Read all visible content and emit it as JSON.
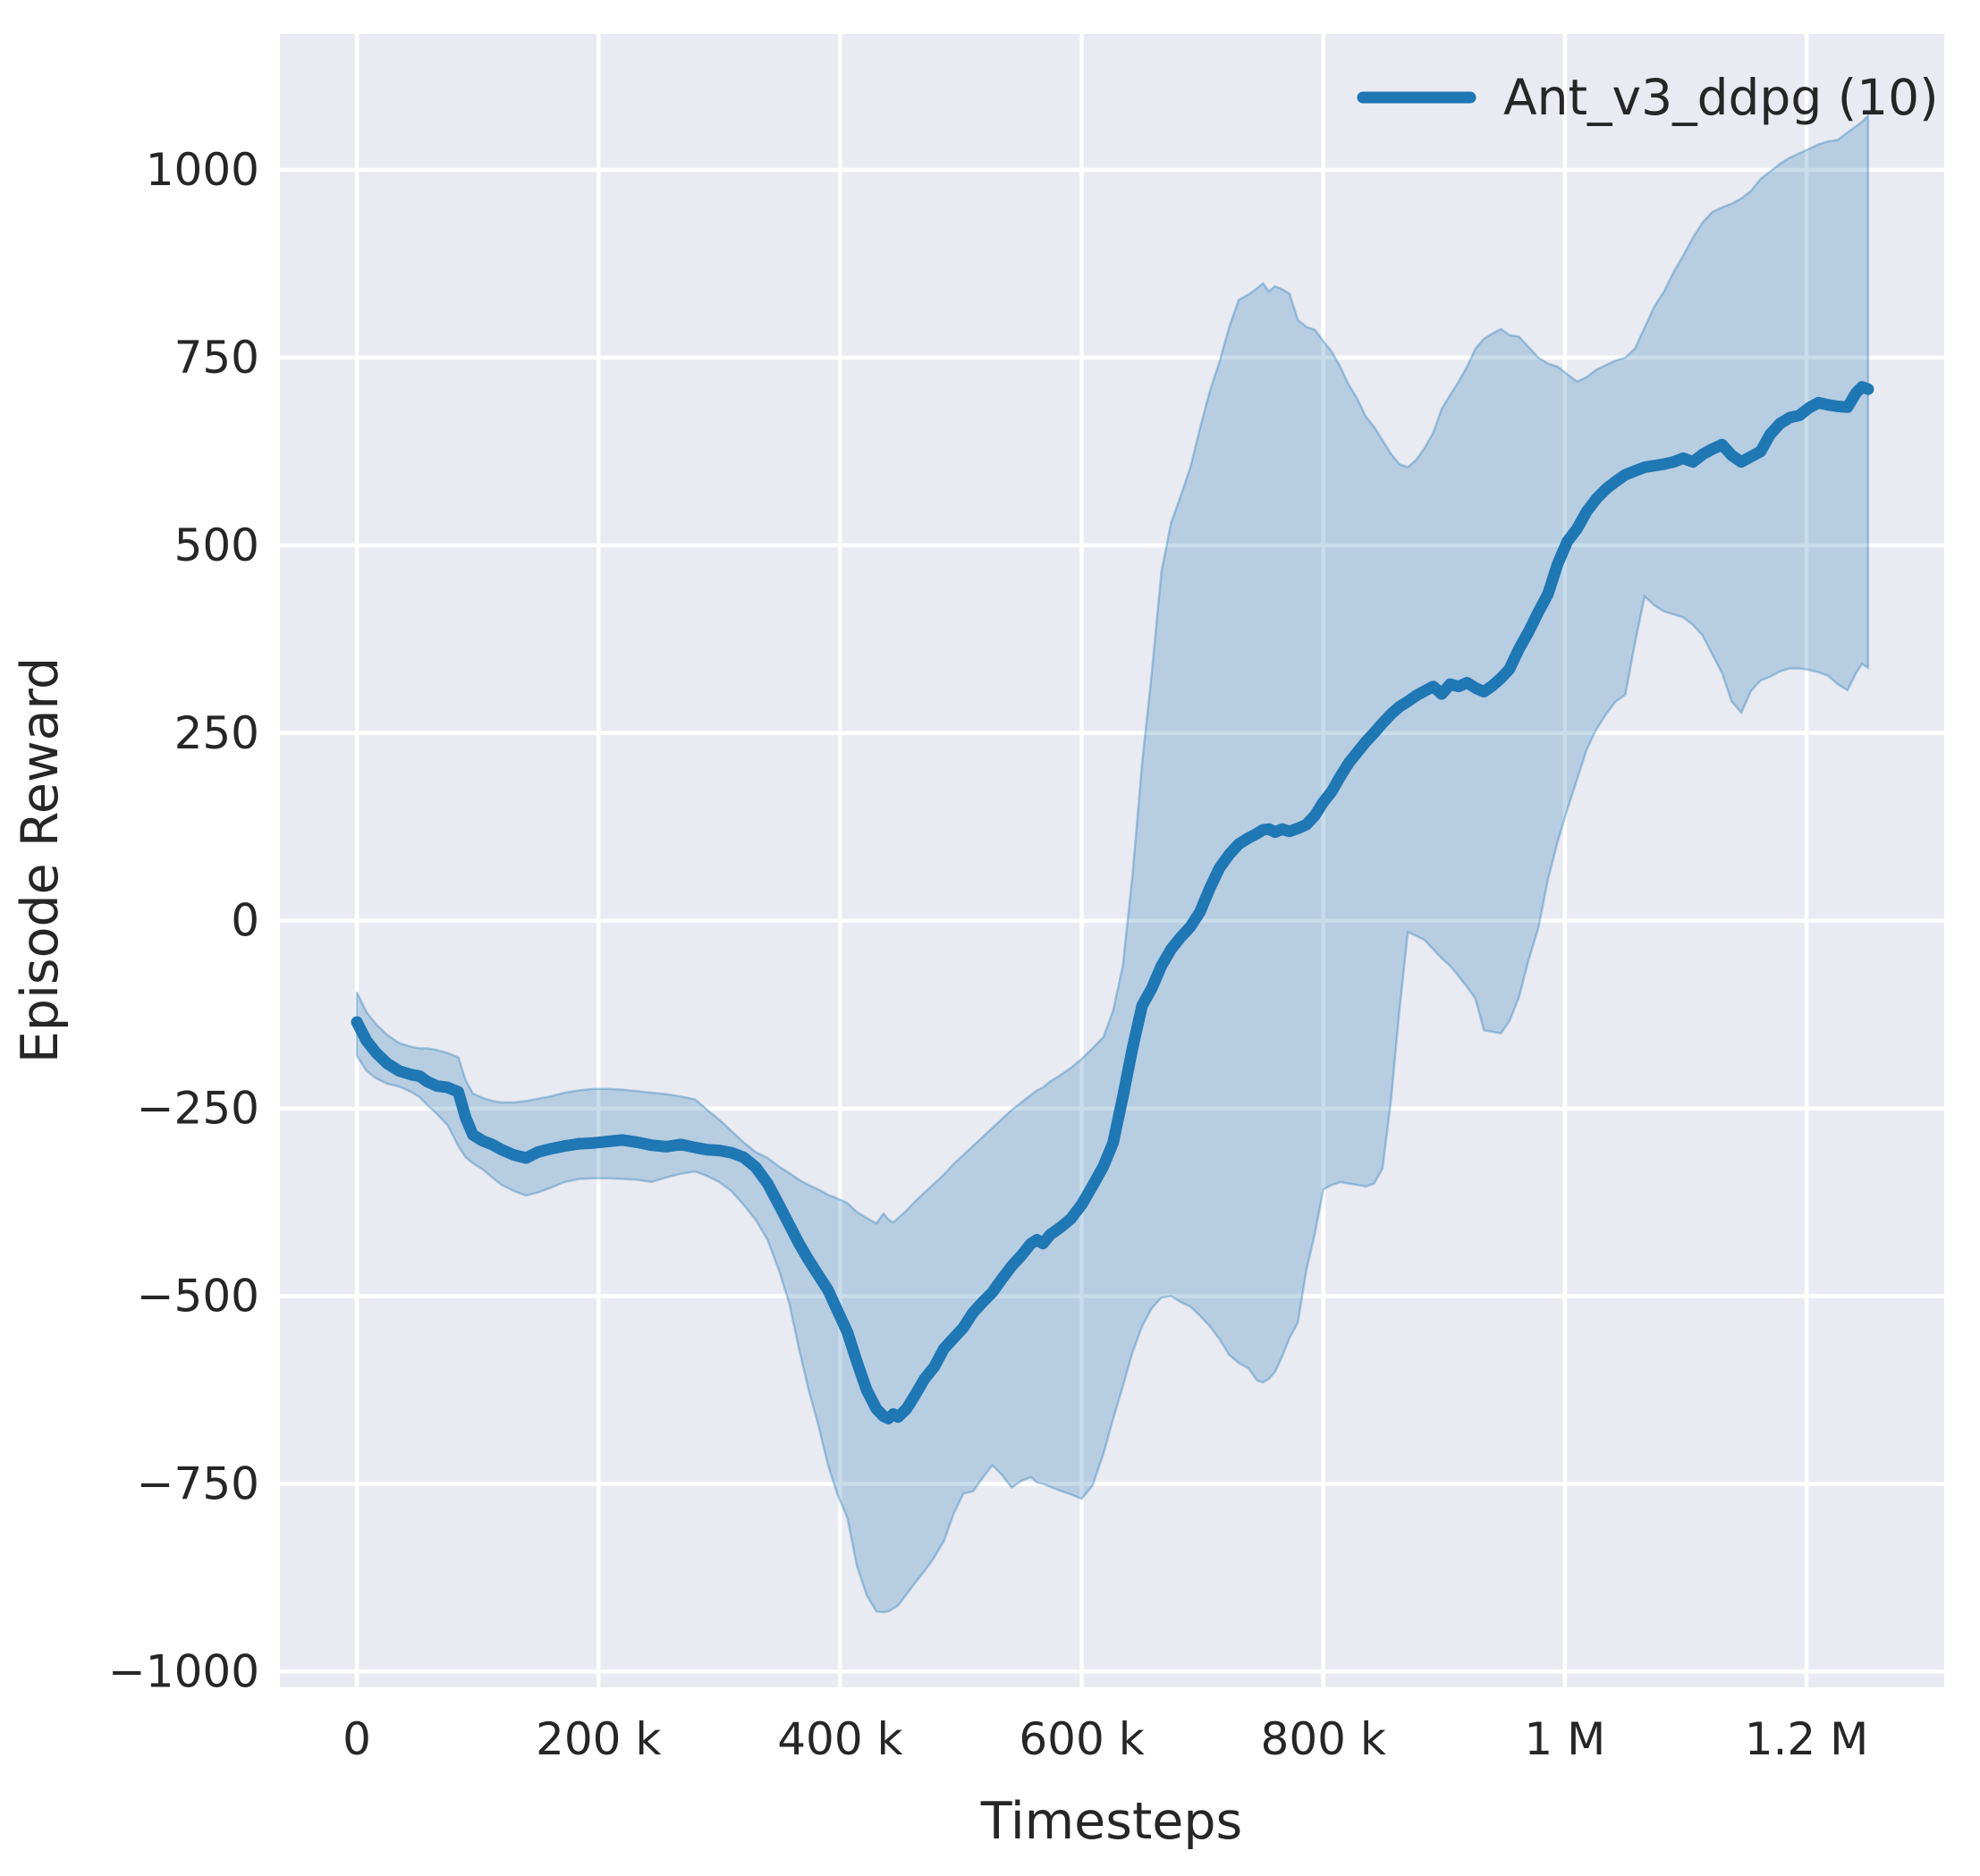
{
  "figure": {
    "background": "#ffffff"
  },
  "legend": {
    "label": "Ant_v3_ddpg (10)"
  },
  "style": {
    "plot_bg": "#eaeaf2",
    "grid_color": "#ffffff",
    "line_color": "#1f77b4",
    "band_color": "#1f77b4",
    "band_alpha": 0.25,
    "text_color": "#262626"
  },
  "chart_data": {
    "type": "line",
    "title": "",
    "xlabel": "Timesteps",
    "ylabel": "Episode Reward",
    "legend_entries": [
      "Ant_v3_ddpg (10)"
    ],
    "legend_position": "upper right",
    "grid": true,
    "x_unit": "timesteps, stored in thousands",
    "xlim_k": [
      -63.7,
      1314
    ],
    "ylim": [
      -1021,
      1181
    ],
    "x_ticks": [
      {
        "value_k": 0,
        "label": "0"
      },
      {
        "value_k": 200,
        "label": "200 k"
      },
      {
        "value_k": 400,
        "label": "400 k"
      },
      {
        "value_k": 600,
        "label": "600 k"
      },
      {
        "value_k": 800,
        "label": "800 k"
      },
      {
        "value_k": 1000,
        "label": "1 M"
      },
      {
        "value_k": 1200,
        "label": "1.2 M"
      }
    ],
    "y_ticks": [
      {
        "value": 1000,
        "label": "1000"
      },
      {
        "value": 750,
        "label": "750"
      },
      {
        "value": 500,
        "label": "500"
      },
      {
        "value": 250,
        "label": "250"
      },
      {
        "value": 0,
        "label": "0"
      },
      {
        "value": -250,
        "label": "−250"
      },
      {
        "value": -500,
        "label": "−500"
      },
      {
        "value": -750,
        "label": "−750"
      },
      {
        "value": -1000,
        "label": "−1000"
      }
    ],
    "series": [
      {
        "name": "Ant_v3_ddpg (10)",
        "color": "#1f77b4",
        "band": "mean ± std over 10 seeds",
        "points_k_mean_lo_hi": [
          [
            0,
            -135,
            -180,
            -95
          ],
          [
            8,
            -160,
            -200,
            -122
          ],
          [
            16,
            -176,
            -210,
            -138
          ],
          [
            25,
            -190,
            -217,
            -152
          ],
          [
            35,
            -200,
            -221,
            -163
          ],
          [
            45,
            -205,
            -228,
            -168
          ],
          [
            52,
            -207,
            -235,
            -170
          ],
          [
            58,
            -214,
            -245,
            -170
          ],
          [
            66,
            -220,
            -257,
            -172
          ],
          [
            75,
            -222,
            -272,
            -176
          ],
          [
            84,
            -228,
            -300,
            -182
          ],
          [
            90,
            -262,
            -315,
            -212
          ],
          [
            96,
            -285,
            -323,
            -230
          ],
          [
            104,
            -293,
            -331,
            -236
          ],
          [
            112,
            -298,
            -342,
            -240
          ],
          [
            120,
            -305,
            -352,
            -242
          ],
          [
            130,
            -312,
            -360,
            -242
          ],
          [
            140,
            -316,
            -366,
            -240
          ],
          [
            150,
            -308,
            -362,
            -237
          ],
          [
            160,
            -304,
            -356,
            -234
          ],
          [
            172,
            -300,
            -348,
            -229
          ],
          [
            184,
            -297,
            -344,
            -226
          ],
          [
            196,
            -296,
            -343,
            -224
          ],
          [
            208,
            -294,
            -343,
            -224
          ],
          [
            220,
            -292,
            -344,
            -225
          ],
          [
            232,
            -295,
            -345,
            -227
          ],
          [
            244,
            -299,
            -348,
            -229
          ],
          [
            256,
            -301,
            -342,
            -231
          ],
          [
            268,
            -298,
            -337,
            -234
          ],
          [
            280,
            -302,
            -334,
            -238
          ],
          [
            290,
            -305,
            -340,
            -252
          ],
          [
            300,
            -306,
            -348,
            -265
          ],
          [
            310,
            -309,
            -360,
            -280
          ],
          [
            320,
            -315,
            -378,
            -295
          ],
          [
            330,
            -328,
            -398,
            -308
          ],
          [
            340,
            -350,
            -425,
            -316
          ],
          [
            350,
            -380,
            -468,
            -328
          ],
          [
            358,
            -405,
            -510,
            -336
          ],
          [
            366,
            -430,
            -570,
            -345
          ],
          [
            374,
            -452,
            -625,
            -352
          ],
          [
            382,
            -472,
            -672,
            -358
          ],
          [
            390,
            -492,
            -725,
            -365
          ],
          [
            398,
            -520,
            -765,
            -370
          ],
          [
            406,
            -548,
            -795,
            -376
          ],
          [
            414,
            -588,
            -860,
            -388
          ],
          [
            422,
            -625,
            -898,
            -396
          ],
          [
            430,
            -650,
            -920,
            -403
          ],
          [
            436,
            -660,
            -921,
            -390
          ],
          [
            440,
            -663,
            -920,
            -398
          ],
          [
            444,
            -657,
            -916,
            -402
          ],
          [
            448,
            -661,
            -912,
            -396
          ],
          [
            455,
            -650,
            -897,
            -386
          ],
          [
            462,
            -632,
            -882,
            -374
          ],
          [
            470,
            -610,
            -866,
            -362
          ],
          [
            478,
            -594,
            -848,
            -350
          ],
          [
            486,
            -570,
            -826,
            -338
          ],
          [
            494,
            -556,
            -790,
            -324
          ],
          [
            502,
            -542,
            -763,
            -312
          ],
          [
            510,
            -522,
            -760,
            -300
          ],
          [
            518,
            -508,
            -742,
            -288
          ],
          [
            526,
            -495,
            -725,
            -276
          ],
          [
            534,
            -477,
            -738,
            -264
          ],
          [
            542,
            -460,
            -755,
            -252
          ],
          [
            550,
            -446,
            -746,
            -242
          ],
          [
            558,
            -430,
            -741,
            -232
          ],
          [
            563,
            -425,
            -748,
            -226
          ],
          [
            568,
            -430,
            -750,
            -222
          ],
          [
            574,
            -418,
            -754,
            -214
          ],
          [
            582,
            -409,
            -759,
            -206
          ],
          [
            591,
            -397,
            -764,
            -196
          ],
          [
            600,
            -378,
            -770,
            -184
          ],
          [
            609,
            -353,
            -752,
            -170
          ],
          [
            618,
            -327,
            -710,
            -155
          ],
          [
            626,
            -296,
            -664,
            -120
          ],
          [
            634,
            -235,
            -620,
            -60
          ],
          [
            642,
            -170,
            -575,
            60
          ],
          [
            650,
            -113,
            -540,
            210
          ],
          [
            658,
            -90,
            -516,
            330
          ],
          [
            666,
            -60,
            -502,
            465
          ],
          [
            674,
            -38,
            -500,
            530
          ],
          [
            682,
            -22,
            -508,
            566
          ],
          [
            690,
            -8,
            -514,
            604
          ],
          [
            698,
            12,
            -526,
            656
          ],
          [
            706,
            43,
            -540,
            705
          ],
          [
            714,
            70,
            -557,
            744
          ],
          [
            722,
            88,
            -578,
            790
          ],
          [
            730,
            102,
            -589,
            827
          ],
          [
            738,
            110,
            -596,
            834
          ],
          [
            745,
            116,
            -612,
            842
          ],
          [
            750,
            121,
            -615,
            849
          ],
          [
            755,
            122,
            -610,
            838
          ],
          [
            760,
            118,
            -601,
            845
          ],
          [
            766,
            122,
            -580,
            841
          ],
          [
            772,
            119,
            -556,
            835
          ],
          [
            779,
            123,
            -535,
            800
          ],
          [
            786,
            128,
            -465,
            791
          ],
          [
            793,
            140,
            -417,
            787
          ],
          [
            800,
            158,
            -358,
            772
          ],
          [
            807,
            172,
            -352,
            758
          ],
          [
            814,
            192,
            -348,
            738
          ],
          [
            821,
            210,
            -350,
            714
          ],
          [
            828,
            224,
            -352,
            696
          ],
          [
            835,
            238,
            -354,
            672
          ],
          [
            842,
            250,
            -350,
            658
          ],
          [
            849,
            263,
            -330,
            640
          ],
          [
            856,
            275,
            -240,
            622
          ],
          [
            863,
            285,
            -120,
            608
          ],
          [
            870,
            292,
            -15,
            604
          ],
          [
            877,
            300,
            -20,
            614
          ],
          [
            884,
            306,
            -26,
            630
          ],
          [
            891,
            312,
            -38,
            650
          ],
          [
            898,
            302,
            -50,
            682
          ],
          [
            905,
            315,
            -60,
            700
          ],
          [
            912,
            312,
            -74,
            718
          ],
          [
            919,
            317,
            -88,
            738
          ],
          [
            926,
            310,
            -104,
            762
          ],
          [
            933,
            305,
            -146,
            775
          ],
          [
            940,
            313,
            -148,
            782
          ],
          [
            947,
            323,
            -150,
            788
          ],
          [
            954,
            335,
            -134,
            780
          ],
          [
            962,
            362,
            -102,
            778
          ],
          [
            970,
            385,
            -52,
            764
          ],
          [
            978,
            411,
            -10,
            750
          ],
          [
            986,
            435,
            55,
            742
          ],
          [
            994,
            475,
            105,
            738
          ],
          [
            1002,
            505,
            148,
            728
          ],
          [
            1010,
            522,
            188,
            718
          ],
          [
            1018,
            545,
            228,
            724
          ],
          [
            1026,
            562,
            255,
            734
          ],
          [
            1034,
            575,
            275,
            740
          ],
          [
            1042,
            585,
            292,
            746
          ],
          [
            1050,
            594,
            301,
            750
          ],
          [
            1058,
            599,
            370,
            762
          ],
          [
            1066,
            604,
            432,
            790
          ],
          [
            1074,
            606,
            420,
            818
          ],
          [
            1082,
            608,
            412,
            838
          ],
          [
            1090,
            611,
            408,
            864
          ],
          [
            1098,
            616,
            404,
            886
          ],
          [
            1106,
            611,
            394,
            910
          ],
          [
            1114,
            621,
            380,
            930
          ],
          [
            1122,
            628,
            355,
            944
          ],
          [
            1130,
            634,
            330,
            950
          ],
          [
            1138,
            620,
            292,
            955
          ],
          [
            1146,
            611,
            277,
            962
          ],
          [
            1154,
            618,
            306,
            972
          ],
          [
            1162,
            625,
            320,
            988
          ],
          [
            1170,
            648,
            325,
            998
          ],
          [
            1178,
            662,
            332,
            1008
          ],
          [
            1186,
            670,
            336,
            1016
          ],
          [
            1194,
            673,
            336,
            1022
          ],
          [
            1202,
            683,
            334,
            1028
          ],
          [
            1210,
            690,
            331,
            1034
          ],
          [
            1218,
            687,
            326,
            1038
          ],
          [
            1226,
            685,
            315,
            1040
          ],
          [
            1234,
            684,
            307,
            1050
          ],
          [
            1241,
            703,
            330,
            1058
          ],
          [
            1246,
            711,
            342,
            1064
          ],
          [
            1251,
            708,
            337,
            1072
          ]
        ]
      }
    ]
  }
}
